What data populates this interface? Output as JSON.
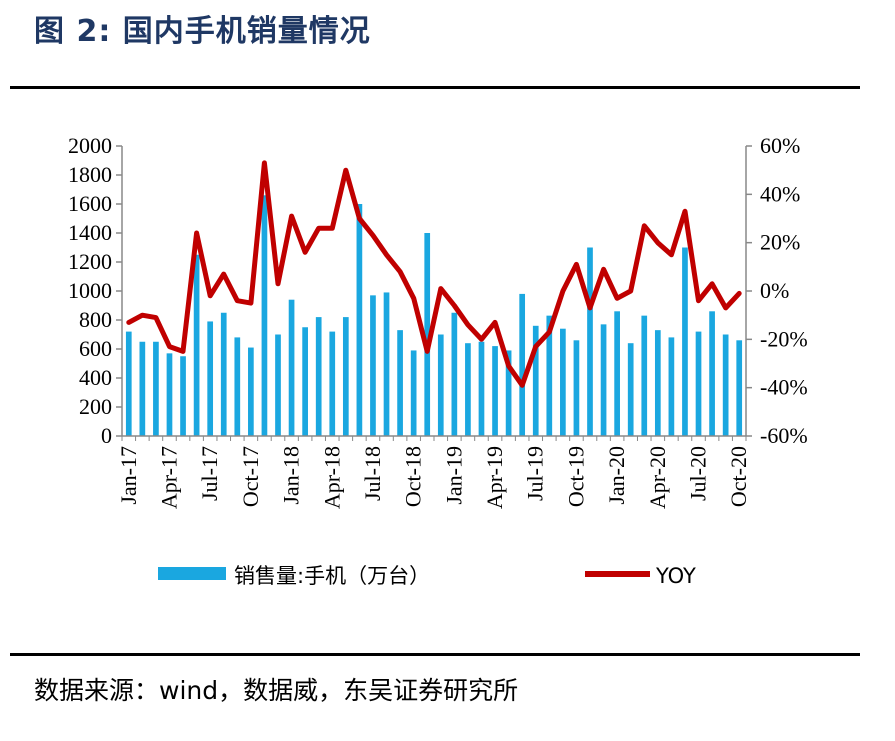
{
  "header": {
    "title": "图 2:  国内手机销量情况"
  },
  "footer": {
    "source": "数据来源：wind，数据威，东吴证券研究所"
  },
  "chart_data": {
    "type": "bar+line",
    "title": "",
    "categories": [
      "2017-01",
      "2017-02",
      "2017-03",
      "2017-04",
      "2017-05",
      "2017-06",
      "2017-07",
      "2017-08",
      "2017-09",
      "2017-10",
      "2017-11",
      "2017-12",
      "2018-01",
      "2018-02",
      "2018-03",
      "2018-04",
      "2018-05",
      "2018-06",
      "2018-07",
      "2018-08",
      "2018-09",
      "2018-10",
      "2018-11",
      "2018-12",
      "2019-01",
      "2019-02",
      "2019-03",
      "2019-04",
      "2019-05",
      "2019-06",
      "2019-07",
      "2019-08",
      "2019-09",
      "2019-10",
      "2019-11",
      "2019-12",
      "2020-01",
      "2020-02",
      "2020-03",
      "2020-04",
      "2020-05",
      "2020-06",
      "2020-07",
      "2020-08",
      "2020-09",
      "2020-10"
    ],
    "x_tick_labels": [
      "Jan-17",
      "Apr-17",
      "Jul-17",
      "Oct-17",
      "Jan-18",
      "Apr-18",
      "Jul-18",
      "Oct-18",
      "Jan-19",
      "Apr-19",
      "Jul-19",
      "Oct-19",
      "Jan-20",
      "Apr-20",
      "Jul-20",
      "Oct-20"
    ],
    "x_tick_every": 3,
    "series": [
      {
        "name": "销售量:手机（万台）",
        "type": "bar",
        "axis": "left",
        "color": "#1aa7e0",
        "values": [
          720,
          650,
          650,
          570,
          550,
          1250,
          790,
          850,
          680,
          610,
          1660,
          700,
          940,
          750,
          820,
          720,
          820,
          1600,
          970,
          990,
          730,
          590,
          1400,
          700,
          850,
          640,
          650,
          620,
          590,
          980,
          760,
          830,
          740,
          660,
          1300,
          770,
          860,
          640,
          830,
          730,
          680,
          1300,
          720,
          860,
          700,
          660
        ]
      },
      {
        "name": "YOY",
        "type": "line",
        "axis": "right",
        "color": "#c00000",
        "values": [
          -13,
          -10,
          -11,
          -23,
          -25,
          24,
          -2,
          7,
          -4,
          -5,
          53,
          3,
          31,
          16,
          26,
          26,
          50,
          30,
          23,
          15,
          8,
          -3,
          -25,
          1,
          -6,
          -14,
          -20,
          -13,
          -31,
          -39,
          -23,
          -17,
          0,
          11,
          -7,
          9,
          -3,
          0,
          27,
          20,
          15,
          33,
          -4,
          3,
          -7,
          -1
        ]
      }
    ],
    "y_left": {
      "min": 0,
      "max": 2000,
      "step": 200,
      "tick_labels": [
        "0",
        "200",
        "400",
        "600",
        "800",
        "1000",
        "1200",
        "1400",
        "1600",
        "1800",
        "2000"
      ]
    },
    "y_right": {
      "min": -60,
      "max": 60,
      "step": 20,
      "tick_labels": [
        "-60%",
        "-40%",
        "-20%",
        "0%",
        "20%",
        "40%",
        "60%"
      ]
    },
    "grid": false,
    "legend": {
      "position": "bottom",
      "items": [
        {
          "label": "销售量:手机（万台）",
          "kind": "bar",
          "color": "#1aa7e0"
        },
        {
          "label": "YOY",
          "kind": "line",
          "color": "#c00000"
        }
      ]
    }
  }
}
